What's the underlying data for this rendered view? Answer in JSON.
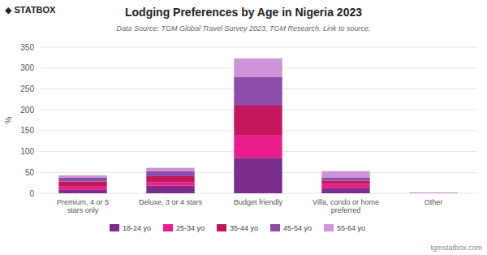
{
  "chart_data": {
    "type": "bar",
    "stacked": true,
    "title": "Lodging Preferences by Age in Nigeria 2023",
    "subtitle": "Data Source: TGM Global Travel Survey 2023, TGM Research. Link to source.",
    "ylabel": "%",
    "categories": [
      "Premium, 4 or 5 stars only",
      "Deluxe, 3 or 4 stars",
      "Budget friendly",
      "Villa, condo or home preferred",
      "Other"
    ],
    "series": [
      {
        "name": "18-24 yo",
        "color": "#7B2D8B",
        "values": [
          8,
          18,
          85,
          12,
          1
        ]
      },
      {
        "name": "25-34 yo",
        "color": "#E91E8C",
        "values": [
          8,
          8,
          55,
          10,
          0
        ]
      },
      {
        "name": "35-44 yo",
        "color": "#C2185B",
        "values": [
          12,
          15,
          70,
          8,
          0
        ]
      },
      {
        "name": "45-54 yo",
        "color": "#8B4DA8",
        "values": [
          10,
          12,
          68,
          8,
          0
        ]
      },
      {
        "name": "55-64 yo",
        "color": "#CE93D8",
        "values": [
          5,
          8,
          45,
          15,
          0
        ]
      }
    ],
    "ylim": [
      0,
      350
    ],
    "yticks": [
      0,
      50,
      100,
      150,
      200,
      250,
      300,
      350
    ],
    "grid": true,
    "legend": "bottom",
    "annotations": [
      "◆ STATBOX",
      "tgmstatbox.com"
    ]
  }
}
